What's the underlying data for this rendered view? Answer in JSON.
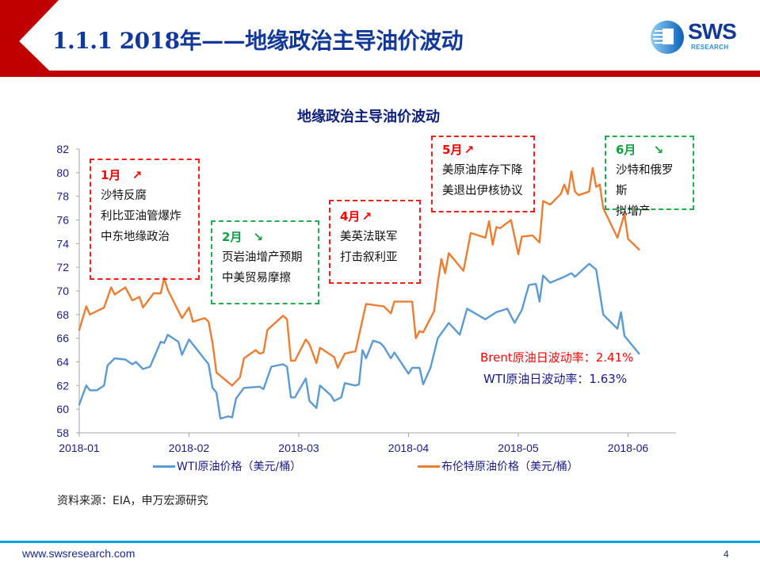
{
  "header": {
    "title": "1.1.1 2018年——地缘政治主导油价波动",
    "logo_text": "SWS",
    "logo_subtext": "RESEARCH",
    "accent_color": "#c00000",
    "title_color": "#12399a"
  },
  "annotations": [
    {
      "month": "1月",
      "direction": "up",
      "arrow": "↗",
      "color": "red",
      "lines": [
        "沙特反腐",
        "利比亚油管爆炸",
        "中东地缘政治"
      ]
    },
    {
      "month": "2月",
      "direction": "down",
      "arrow": "↘",
      "color": "green",
      "lines": [
        "页岩油增产预期",
        "中美贸易摩擦"
      ]
    },
    {
      "month": "4月",
      "direction": "up",
      "arrow": "↗",
      "color": "red",
      "lines": [
        "美英法联军",
        "打击叙利亚"
      ]
    },
    {
      "month": "5月",
      "direction": "up",
      "arrow": "↗",
      "color": "red",
      "lines": [
        "美原油库存下降",
        "美退出伊核协议"
      ]
    },
    {
      "month": "6月",
      "direction": "down",
      "arrow": "↘",
      "color": "green",
      "lines": [
        "沙特和俄罗斯",
        "拟增产"
      ]
    }
  ],
  "volatility": {
    "brent": "Brent原油日波动率：2.41%",
    "wti": "WTI原油日波动率：1.63%",
    "brent_color": "#ff0000",
    "wti_color": "#1a1a8c"
  },
  "source": "资料来源：EIA，申万宏源研究",
  "footer": {
    "website": "www.swsresearch.com",
    "page": "4"
  },
  "chart_data": {
    "type": "line",
    "title": "地缘政治主导油价波动",
    "xlabel": "",
    "ylabel": "",
    "ylim": [
      58,
      82
    ],
    "yticks": [
      58,
      60,
      62,
      64,
      66,
      68,
      70,
      72,
      74,
      76,
      78,
      80,
      82
    ],
    "xticks": [
      "2018-01",
      "2018-02",
      "2018-03",
      "2018-04",
      "2018-05",
      "2018-06"
    ],
    "grid": false,
    "legend": "bottom",
    "series": [
      {
        "name": "WTI原油价格（美元/桶）",
        "color": "#5b9bd5",
        "points": [
          [
            "2018-01-01",
            60.4
          ],
          [
            "2018-01-03",
            62.0
          ],
          [
            "2018-01-04",
            61.6
          ],
          [
            "2018-01-06",
            61.6
          ],
          [
            "2018-01-08",
            62.0
          ],
          [
            "2018-01-09",
            63.7
          ],
          [
            "2018-01-11",
            64.3
          ],
          [
            "2018-01-14",
            64.2
          ],
          [
            "2018-01-16",
            63.8
          ],
          [
            "2018-01-17",
            64.0
          ],
          [
            "2018-01-19",
            63.4
          ],
          [
            "2018-01-21",
            63.6
          ],
          [
            "2018-01-24",
            65.7
          ],
          [
            "2018-01-25",
            65.6
          ],
          [
            "2018-01-26",
            66.3
          ],
          [
            "2018-01-29",
            65.7
          ],
          [
            "2018-01-30",
            64.6
          ],
          [
            "2018-02-01",
            65.9
          ],
          [
            "2018-02-06",
            63.8
          ],
          [
            "2018-02-07",
            61.8
          ],
          [
            "2018-02-08",
            61.4
          ],
          [
            "2018-02-09",
            59.2
          ],
          [
            "2018-02-11",
            59.4
          ],
          [
            "2018-02-12",
            59.3
          ],
          [
            "2018-02-13",
            60.9
          ],
          [
            "2018-02-15",
            61.8
          ],
          [
            "2018-02-19",
            61.9
          ],
          [
            "2018-02-20",
            61.7
          ],
          [
            "2018-02-22",
            63.6
          ],
          [
            "2018-02-25",
            63.8
          ],
          [
            "2018-02-26",
            63.6
          ],
          [
            "2018-02-27",
            61.0
          ],
          [
            "2018-02-28",
            61.0
          ],
          [
            "2018-03-03",
            62.6
          ],
          [
            "2018-03-04",
            60.7
          ],
          [
            "2018-03-06",
            60.1
          ],
          [
            "2018-03-07",
            62.0
          ],
          [
            "2018-03-10",
            61.2
          ],
          [
            "2018-03-11",
            60.7
          ],
          [
            "2018-03-13",
            61.0
          ],
          [
            "2018-03-14",
            62.2
          ],
          [
            "2018-03-17",
            62.0
          ],
          [
            "2018-03-18",
            62.1
          ],
          [
            "2018-03-19",
            65.0
          ],
          [
            "2018-03-20",
            64.3
          ],
          [
            "2018-03-22",
            65.8
          ],
          [
            "2018-03-24",
            65.6
          ],
          [
            "2018-03-25",
            65.3
          ],
          [
            "2018-03-27",
            64.3
          ],
          [
            "2018-03-28",
            64.8
          ],
          [
            "2018-04-01",
            63.0
          ],
          [
            "2018-04-02",
            63.5
          ],
          [
            "2018-04-04",
            63.5
          ],
          [
            "2018-04-05",
            62.1
          ],
          [
            "2018-04-07",
            63.5
          ],
          [
            "2018-04-09",
            66.0
          ],
          [
            "2018-04-12",
            67.3
          ],
          [
            "2018-04-15",
            66.3
          ],
          [
            "2018-04-17",
            68.5
          ],
          [
            "2018-04-22",
            67.6
          ],
          [
            "2018-04-25",
            68.2
          ],
          [
            "2018-04-28",
            68.5
          ],
          [
            "2018-04-30",
            67.3
          ],
          [
            "2018-05-02",
            68.4
          ],
          [
            "2018-05-04",
            70.5
          ],
          [
            "2018-05-06",
            70.6
          ],
          [
            "2018-05-07",
            69.1
          ],
          [
            "2018-05-08",
            71.3
          ],
          [
            "2018-05-10",
            70.7
          ],
          [
            "2018-05-14",
            71.2
          ],
          [
            "2018-05-16",
            71.5
          ],
          [
            "2018-05-17",
            71.2
          ],
          [
            "2018-05-21",
            72.3
          ],
          [
            "2018-05-23",
            71.8
          ],
          [
            "2018-05-25",
            68.0
          ],
          [
            "2018-05-29",
            66.8
          ],
          [
            "2018-05-30",
            68.2
          ],
          [
            "2018-05-31",
            66.2
          ],
          [
            "2018-06-04",
            64.7
          ]
        ]
      },
      {
        "name": "布伦特原油价格（美元/桶）",
        "color": "#ed7d31",
        "points": [
          [
            "2018-01-01",
            66.7
          ],
          [
            "2018-01-03",
            68.7
          ],
          [
            "2018-01-04",
            68.0
          ],
          [
            "2018-01-08",
            68.6
          ],
          [
            "2018-01-10",
            70.3
          ],
          [
            "2018-01-11",
            69.7
          ],
          [
            "2018-01-14",
            70.3
          ],
          [
            "2018-01-16",
            69.2
          ],
          [
            "2018-01-18",
            69.5
          ],
          [
            "2018-01-19",
            68.6
          ],
          [
            "2018-01-22",
            69.8
          ],
          [
            "2018-01-24",
            69.8
          ],
          [
            "2018-01-25",
            71.1
          ],
          [
            "2018-01-26",
            70.1
          ],
          [
            "2018-01-30",
            67.7
          ],
          [
            "2018-02-01",
            68.6
          ],
          [
            "2018-02-02",
            67.4
          ],
          [
            "2018-02-05",
            67.7
          ],
          [
            "2018-02-06",
            67.4
          ],
          [
            "2018-02-07",
            65.6
          ],
          [
            "2018-02-08",
            63.1
          ],
          [
            "2018-02-12",
            62.0
          ],
          [
            "2018-02-14",
            62.7
          ],
          [
            "2018-02-15",
            64.3
          ],
          [
            "2018-02-18",
            65.0
          ],
          [
            "2018-02-19",
            64.7
          ],
          [
            "2018-02-20",
            64.8
          ],
          [
            "2018-02-21",
            66.7
          ],
          [
            "2018-02-25",
            67.9
          ],
          [
            "2018-02-26",
            67.6
          ],
          [
            "2018-02-27",
            64.1
          ],
          [
            "2018-02-28",
            64.1
          ],
          [
            "2018-03-03",
            65.9
          ],
          [
            "2018-03-04",
            65.5
          ],
          [
            "2018-03-06",
            63.9
          ],
          [
            "2018-03-07",
            65.2
          ],
          [
            "2018-03-11",
            64.4
          ],
          [
            "2018-03-12",
            63.5
          ],
          [
            "2018-03-14",
            64.7
          ],
          [
            "2018-03-17",
            64.9
          ],
          [
            "2018-03-20",
            68.9
          ],
          [
            "2018-03-25",
            68.7
          ],
          [
            "2018-03-27",
            68.1
          ],
          [
            "2018-03-28",
            69.1
          ],
          [
            "2018-04-02",
            69.1
          ],
          [
            "2018-04-03",
            66.0
          ],
          [
            "2018-04-04",
            66.6
          ],
          [
            "2018-04-05",
            66.5
          ],
          [
            "2018-04-08",
            68.3
          ],
          [
            "2018-04-09",
            70.7
          ],
          [
            "2018-04-10",
            72.7
          ],
          [
            "2018-04-11",
            71.5
          ],
          [
            "2018-04-12",
            73.2
          ],
          [
            "2018-04-16",
            71.7
          ],
          [
            "2018-04-18",
            74.9
          ],
          [
            "2018-04-22",
            74.5
          ],
          [
            "2018-04-23",
            75.9
          ],
          [
            "2018-04-24",
            73.9
          ],
          [
            "2018-04-25",
            75.4
          ],
          [
            "2018-04-26",
            75.3
          ],
          [
            "2018-04-29",
            76.0
          ],
          [
            "2018-05-01",
            73.1
          ],
          [
            "2018-05-02",
            74.6
          ],
          [
            "2018-05-05",
            74.7
          ],
          [
            "2018-05-07",
            74.1
          ],
          [
            "2018-05-08",
            77.6
          ],
          [
            "2018-05-10",
            77.3
          ],
          [
            "2018-05-13",
            78.2
          ],
          [
            "2018-05-14",
            79.0
          ],
          [
            "2018-05-15",
            78.2
          ],
          [
            "2018-05-16",
            80.1
          ],
          [
            "2018-05-17",
            78.4
          ],
          [
            "2018-05-18",
            78.1
          ],
          [
            "2018-05-21",
            78.4
          ],
          [
            "2018-05-22",
            80.4
          ],
          [
            "2018-05-23",
            78.8
          ],
          [
            "2018-05-24",
            79.0
          ],
          [
            "2018-05-25",
            77.0
          ],
          [
            "2018-05-29",
            74.5
          ],
          [
            "2018-05-31",
            76.5
          ],
          [
            "2018-06-01",
            74.4
          ],
          [
            "2018-06-04",
            73.5
          ]
        ]
      }
    ]
  }
}
